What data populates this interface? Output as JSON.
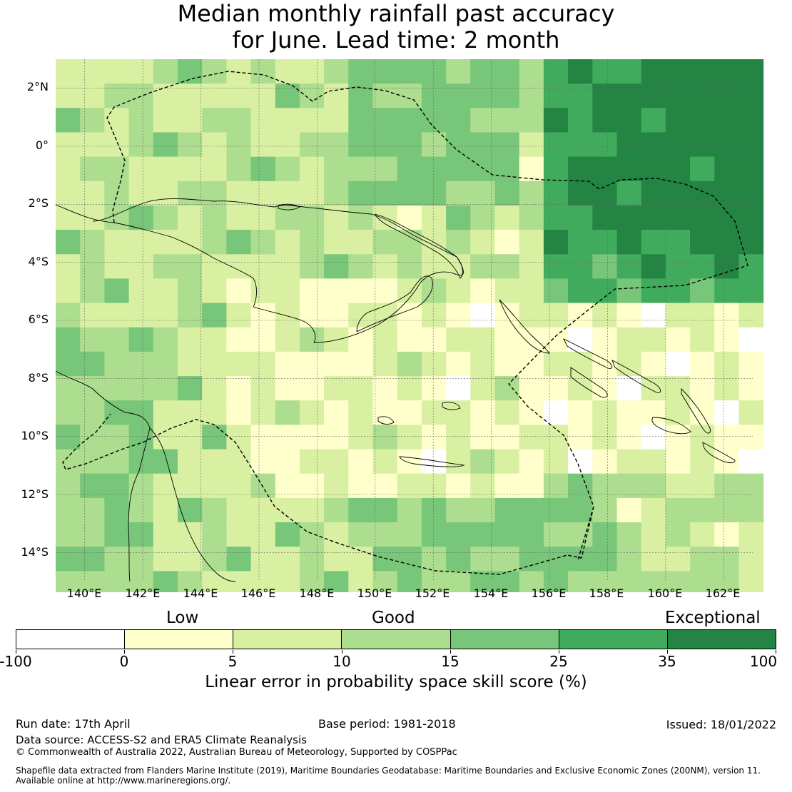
{
  "title": {
    "line1": "Median monthly rainfall past accuracy",
    "line2": "for June. Lead time: 2 month"
  },
  "map": {
    "lon_labels": [
      "140°E",
      "142°E",
      "144°E",
      "146°E",
      "148°E",
      "150°E",
      "152°E",
      "154°E",
      "156°E",
      "158°E",
      "160°E",
      "162°E"
    ],
    "lat_labels": [
      "2°N",
      "0°",
      "2°S",
      "4°S",
      "6°S",
      "8°S",
      "10°S",
      "12°S",
      "14°S"
    ],
    "extent": {
      "lon_min": 139.0,
      "lon_max": 163.0,
      "lat_min": -15.0,
      "lat_max": 3.0
    },
    "grid_resolution_deg": 0.84
  },
  "legend": {
    "categories": [
      "Low",
      "Good",
      "Exceptional"
    ],
    "ticks": [
      "-100",
      "0",
      "5",
      "10",
      "15",
      "25",
      "35",
      "100"
    ],
    "colors": [
      "#ffffff",
      "#ffffcc",
      "#d9f0a3",
      "#addd8e",
      "#78c679",
      "#41ab5d",
      "#238443"
    ],
    "label": "Linear error in probability space skill score (%)"
  },
  "footer": {
    "run_date": "Run date: 17th April",
    "base_period": "Base period: 1981-2018",
    "issued": "Issued: 18/01/2022",
    "data_source": "Data source: ACCESS-S2 and ERA5 Climate Reanalysis",
    "copyright": "© Commonwealth of Australia 2022, Australian Bureau of Meteorology, Supported by COSPPac",
    "shapefile_line1": "Shapefile data extracted from Flanders Marine Institute (2019), Maritime Boundaries Geodatabase: Maritime Boundaries and Exclusive Economic Zones (200NM), version 11.",
    "shapefile_line2": "Available online at http://www.marineregions.org/."
  }
}
